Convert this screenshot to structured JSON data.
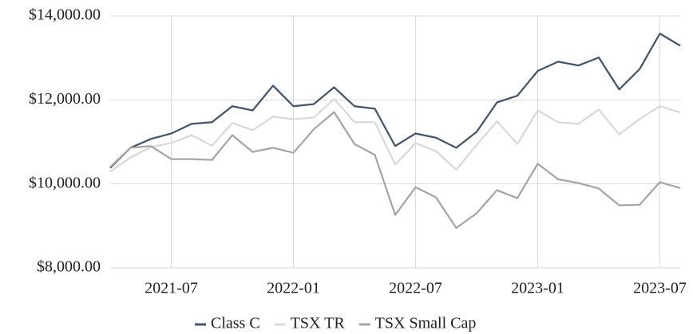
{
  "chart_data": {
    "type": "line",
    "x": [
      "2021-04",
      "2021-05",
      "2021-06",
      "2021-07",
      "2021-08",
      "2021-09",
      "2021-10",
      "2021-11",
      "2021-12",
      "2022-01",
      "2022-02",
      "2022-03",
      "2022-04",
      "2022-05",
      "2022-06",
      "2022-07",
      "2022-08",
      "2022-09",
      "2022-10",
      "2022-11",
      "2022-12",
      "2023-01",
      "2023-02",
      "2023-03",
      "2023-04",
      "2023-05",
      "2023-06",
      "2023-07",
      "2023-08"
    ],
    "series": [
      {
        "name": "Class C",
        "color": "#44546a",
        "values": [
          10380,
          10860,
          11070,
          11200,
          11430,
          11470,
          11850,
          11750,
          12340,
          11850,
          11900,
          12300,
          11850,
          11790,
          10900,
          11200,
          11100,
          10860,
          11240,
          11940,
          12100,
          12690,
          12910,
          12820,
          13010,
          12250,
          12730,
          13580,
          13290
        ]
      },
      {
        "name": "TSX TR",
        "color": "#d9d9d9",
        "values": [
          10290,
          10630,
          10880,
          10970,
          11160,
          10910,
          11450,
          11280,
          11600,
          11540,
          11580,
          12020,
          11470,
          11470,
          10460,
          10970,
          10780,
          10340,
          10930,
          11490,
          10950,
          11750,
          11470,
          11430,
          11770,
          11180,
          11540,
          11850,
          11700
        ]
      },
      {
        "name": "TSX Small Cap",
        "color": "#a5a5a5",
        "values": [
          10400,
          10860,
          10900,
          10590,
          10590,
          10570,
          11160,
          10760,
          10860,
          10740,
          11300,
          11710,
          10950,
          10690,
          9260,
          9920,
          9680,
          8950,
          9300,
          9850,
          9660,
          10480,
          10110,
          10020,
          9890,
          9490,
          9500,
          10040,
          9900
        ]
      }
    ],
    "xlim": [
      "2021-04",
      "2023-08"
    ],
    "xticks": [
      "2021-07",
      "2022-01",
      "2022-07",
      "2023-01",
      "2023-07"
    ],
    "ylim": [
      8000,
      14000
    ],
    "yticks": [
      {
        "value": 8000,
        "label": "$8,000.00"
      },
      {
        "value": 10000,
        "label": "$10,000.00"
      },
      {
        "value": 12000,
        "label": "$12,000.00"
      },
      {
        "value": 14000,
        "label": "$14,000.00"
      }
    ],
    "grid": true,
    "legend": "bottom"
  }
}
